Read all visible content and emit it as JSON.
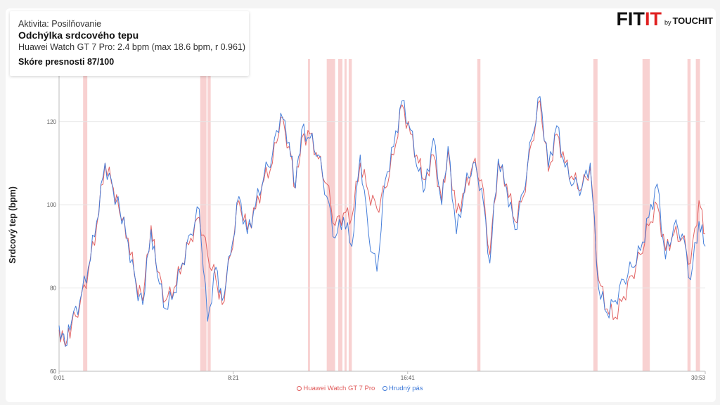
{
  "info": {
    "activity": "Aktivita: Posilňovanie",
    "title": "Odchýlka srdcového tepu",
    "detail": "Huawei Watch GT 7 Pro: 2.4 bpm  (max 18.6 bpm, r 0.961)",
    "score": "Skóre presnosti 87/100"
  },
  "logo": {
    "fit": "FIT",
    "it": "IT",
    "by": "by",
    "touch": "TOUCHIT"
  },
  "colors": {
    "watch": "#e05a5a",
    "strap": "#3c78d8",
    "band": "#f7c9c9",
    "grid": "#e6e6e6"
  },
  "chart_data": {
    "type": "line",
    "title": "Odchýlka srdcového tepu",
    "xlabel": "",
    "ylabel": "Srdcový tep (bpm)",
    "x_ticks": [
      "0:01",
      "8:21",
      "16:41",
      "30:53"
    ],
    "y_ticks": [
      60,
      80,
      100,
      120
    ],
    "ylim": [
      60,
      135
    ],
    "grid": true,
    "legend_position": "bottom",
    "series": [
      {
        "name": "Huawei Watch GT 7 Pro",
        "color": "#e05a5a",
        "x": [
          0,
          0.3,
          0.6,
          1.0,
          1.4,
          1.8,
          2.2,
          2.6,
          2.9,
          3.3,
          3.7,
          4.0,
          4.4,
          4.7,
          5.1,
          5.5,
          5.9,
          6.3,
          6.7,
          7.1,
          7.5,
          7.8,
          8.2,
          8.6,
          9.0,
          9.4,
          9.8,
          10.2,
          10.6,
          11.0,
          11.3,
          11.6,
          12.0,
          12.4,
          12.8,
          13.2,
          13.6,
          14.0,
          14.4,
          14.8,
          15.2,
          15.6,
          16.0,
          16.4,
          16.8,
          17.2,
          17.5,
          17.9,
          18.3,
          18.6,
          19.0,
          19.4,
          19.8,
          20.2,
          20.6,
          21.0,
          21.4,
          21.8,
          22.2,
          22.6,
          23.0,
          23.4,
          23.8,
          24.2,
          24.6,
          25.0,
          25.4,
          25.8,
          26.2,
          26.6,
          27.0,
          27.4,
          27.8,
          28.2,
          28.6,
          29.0,
          29.4,
          29.8,
          30.2,
          30.6,
          30.9
        ],
        "values": [
          70,
          66,
          71,
          76,
          84,
          95,
          110,
          104,
          98,
          92,
          81,
          77,
          95,
          84,
          77,
          80,
          86,
          92,
          97,
          88,
          82,
          76,
          88,
          101,
          94,
          99,
          106,
          110,
          121,
          114,
          104,
          116,
          117,
          111,
          105,
          95,
          98,
          97,
          110,
          103,
          99,
          104,
          112,
          124,
          117,
          110,
          106,
          112,
          101,
          113,
          98,
          103,
          110,
          106,
          88,
          110,
          105,
          96,
          102,
          115,
          125,
          108,
          117,
          110,
          106,
          104,
          109,
          82,
          75,
          73,
          78,
          83,
          88,
          95,
          100,
          89,
          93,
          92,
          86,
          101,
          93
        ]
      },
      {
        "name": "Hrudný pás",
        "color": "#3c78d8",
        "x": [
          0,
          0.3,
          0.6,
          1.0,
          1.4,
          1.8,
          2.2,
          2.6,
          2.9,
          3.3,
          3.7,
          4.0,
          4.4,
          4.7,
          5.1,
          5.5,
          5.9,
          6.3,
          6.7,
          7.1,
          7.5,
          7.8,
          8.2,
          8.6,
          9.0,
          9.4,
          9.8,
          10.2,
          10.6,
          11.0,
          11.3,
          11.6,
          12.0,
          12.4,
          12.8,
          13.2,
          13.6,
          14.0,
          14.4,
          14.8,
          15.2,
          15.6,
          16.0,
          16.4,
          16.8,
          17.2,
          17.5,
          17.9,
          18.3,
          18.6,
          19.0,
          19.4,
          19.8,
          20.2,
          20.6,
          21.0,
          21.4,
          21.8,
          22.2,
          22.6,
          23.0,
          23.4,
          23.8,
          24.2,
          24.6,
          25.0,
          25.4,
          25.8,
          26.2,
          26.6,
          27.0,
          27.4,
          27.8,
          28.2,
          28.6,
          29.0,
          29.4,
          29.8,
          30.2,
          30.6,
          30.9
        ],
        "values": [
          71,
          66,
          72,
          77,
          85,
          96,
          110,
          103,
          99,
          91,
          80,
          76,
          94,
          83,
          75,
          79,
          86,
          93,
          99,
          72,
          85,
          77,
          88,
          102,
          93,
          100,
          107,
          112,
          122,
          115,
          104,
          118,
          116,
          112,
          102,
          92,
          97,
          90,
          112,
          93,
          84,
          106,
          114,
          125,
          118,
          108,
          104,
          116,
          100,
          114,
          93,
          104,
          110,
          104,
          86,
          111,
          104,
          94,
          103,
          116,
          126,
          109,
          119,
          109,
          105,
          104,
          110,
          80,
          74,
          77,
          82,
          85,
          89,
          97,
          105,
          87,
          95,
          93,
          82,
          96,
          90
        ]
      }
    ],
    "deviation_bands": [
      [
        1.15,
        1.35
      ],
      [
        6.75,
        7.05
      ],
      [
        7.1,
        7.25
      ],
      [
        11.9,
        12.0
      ],
      [
        12.8,
        13.2
      ],
      [
        13.35,
        13.55
      ],
      [
        13.65,
        13.75
      ],
      [
        13.85,
        14.0
      ],
      [
        20.0,
        20.15
      ],
      [
        25.55,
        25.75
      ],
      [
        27.9,
        28.25
      ],
      [
        30.05,
        30.2
      ],
      [
        30.45,
        30.65
      ]
    ],
    "x_max": 30.9
  },
  "legend": {
    "watch_label": "Huawei Watch GT 7 Pro",
    "strap_label": "Hrudný pás"
  }
}
